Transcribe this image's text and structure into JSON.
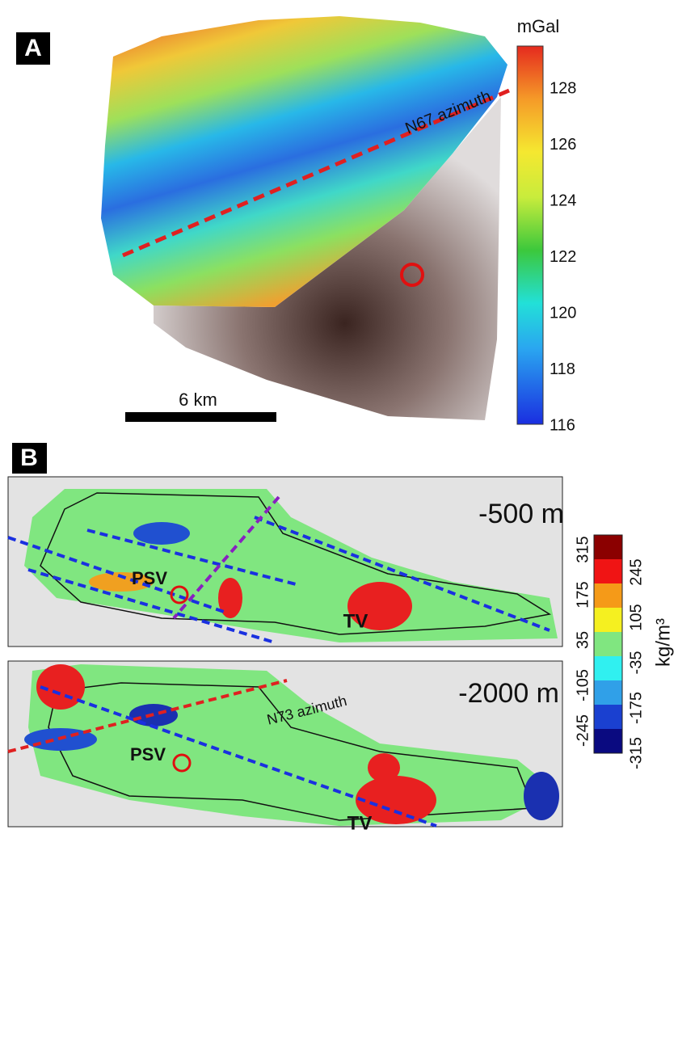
{
  "panel_a": {
    "label": "A",
    "colorbar": {
      "unit": "mGal",
      "ticks": [
        "128",
        "126",
        "124",
        "122",
        "120",
        "118",
        "116"
      ]
    },
    "profile_label": "N67 azimuth",
    "scale_bar": "6 km"
  },
  "panel_b": {
    "label": "B",
    "slices": [
      {
        "depth": "-500 m",
        "labels": [
          "PSV",
          "TV"
        ]
      },
      {
        "depth": "-2000 m",
        "labels": [
          "PSV",
          "TV"
        ],
        "profile_label": "N73 azimuth"
      }
    ],
    "colorbar": {
      "unit": "kg/m³",
      "ticks": [
        "315",
        "245",
        "175",
        "105",
        "35",
        "-35",
        "-105",
        "-175",
        "-245",
        "-315"
      ]
    }
  }
}
